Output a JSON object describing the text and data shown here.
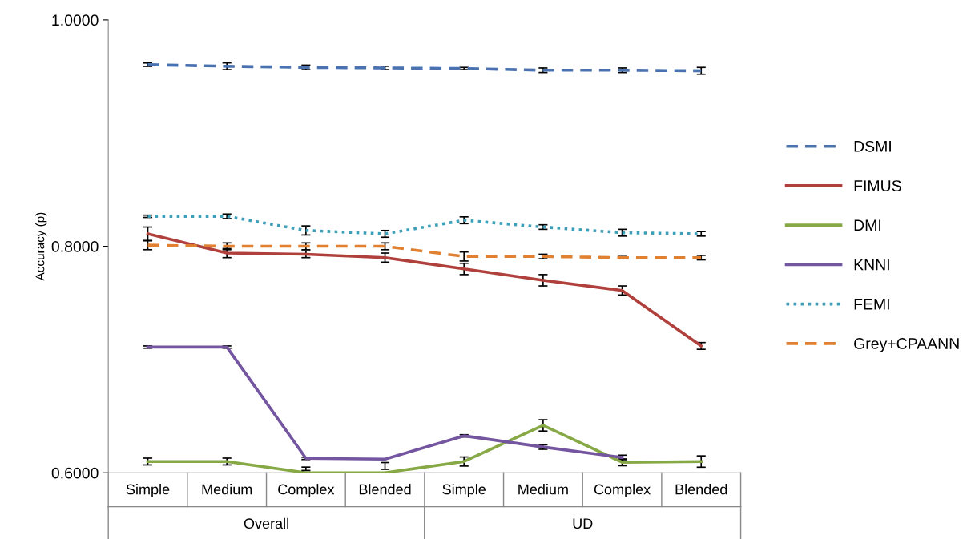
{
  "chart_data": {
    "type": "line",
    "ylabel": "Accuracy (p)",
    "categories": [
      "Simple",
      "Medium",
      "Complex",
      "Blended",
      "Simple",
      "Medium",
      "Complex",
      "Blended"
    ],
    "annotations": [
      "Overall",
      "UD"
    ],
    "ylim": [
      0.6,
      1.0
    ],
    "yticks": [
      {
        "value": 0.6,
        "label": "0.6000"
      },
      {
        "value": 0.8,
        "label": "0.8000"
      },
      {
        "value": 1.0,
        "label": "1.0000"
      }
    ],
    "grid": false,
    "legend": "right",
    "marker": "none",
    "series": [
      {
        "name": "DSMI",
        "color": "#4a72b0",
        "line_style": "dashed",
        "values": [
          0.9604,
          0.959,
          0.958,
          0.9575,
          0.957,
          0.9555,
          0.9555,
          0.955
        ],
        "errors": [
          0.0015,
          0.003,
          0.002,
          0.0015,
          0.001,
          0.002,
          0.002,
          0.003
        ]
      },
      {
        "name": "FIMUS",
        "color": "#b0403c",
        "line_style": "solid",
        "values": [
          0.811,
          0.794,
          0.793,
          0.79,
          0.78,
          0.77,
          0.761,
          0.712
        ],
        "errors": [
          0.006,
          0.004,
          0.003,
          0.004,
          0.005,
          0.005,
          0.004,
          0.003
        ]
      },
      {
        "name": "DMI",
        "color": "#86a845",
        "line_style": "solid",
        "values": [
          0.6099,
          0.6099,
          0.6,
          0.6,
          0.6099,
          0.6418,
          0.6092,
          0.6099
        ],
        "errors": [
          0.003,
          0.003,
          [
            0.602,
            0.605
          ],
          [
            0.603,
            0.609
          ],
          0.004,
          0.005,
          0.003,
          0.005
        ]
      },
      {
        "name": "KNNI",
        "color": "#7455a0",
        "line_style": "solid",
        "values": [
          0.711,
          0.711,
          0.6127,
          0.612,
          0.6326,
          0.6227,
          0.6135,
          null
        ],
        "errors": [
          0.001,
          0.001,
          0.001,
          null,
          0.001,
          0.002,
          0.002,
          null
        ]
      },
      {
        "name": "FEMI",
        "color": "#3ea0b8",
        "line_style": "dotted",
        "values": [
          0.8265,
          0.8265,
          0.814,
          0.811,
          0.823,
          0.817,
          0.812,
          0.811
        ],
        "errors": [
          0.001,
          0.002,
          0.004,
          0.003,
          0.003,
          0.002,
          0.003,
          0.002
        ]
      },
      {
        "name": "Grey+CPAANN",
        "color": "#e08030",
        "line_style": "dashed",
        "values": [
          0.801,
          0.8,
          0.8,
          0.8,
          0.791,
          0.791,
          0.79,
          0.79
        ],
        "errors": [
          0.004,
          0.003,
          0.003,
          0.003,
          0.004,
          0.002,
          0.001,
          0.002
        ]
      }
    ]
  }
}
